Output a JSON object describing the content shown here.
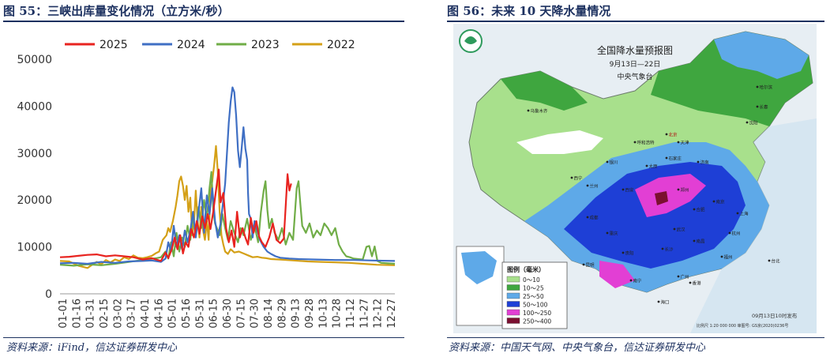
{
  "left_panel": {
    "figure_title": "图 55：三峡出库量变化情况（立方米/秒）",
    "source": "资料来源：iFind，信达证券研发中心"
  },
  "right_panel": {
    "figure_title": "图 56：未来 10 天降水量情况",
    "source": "资料来源：中国天气网、中央气象台，信达证券研发中心",
    "map": {
      "title": "全国降水量预报图",
      "date_range": "9月13日—22日",
      "issuer": "中央气象台",
      "legend_title": "图例（毫米）",
      "legend": [
        {
          "label": "0～10",
          "color": "#a8e08c"
        },
        {
          "label": "10～25",
          "color": "#3fa63f"
        },
        {
          "label": "25～50",
          "color": "#5ea9e8"
        },
        {
          "label": "50～100",
          "color": "#1e3fd6"
        },
        {
          "label": "100～250",
          "color": "#e23fd4"
        },
        {
          "label": "250～400",
          "color": "#7a1030"
        }
      ],
      "footer": "09月13日10时发布",
      "scale_note": "比例尺 1:20 000 000  审图号: GS京(2020)0236号",
      "cities": [
        "乌鲁木齐",
        "西宁",
        "兰州",
        "银川",
        "呼和浩特",
        "北京",
        "天津",
        "哈尔滨",
        "长春",
        "沈阳",
        "太原",
        "石家庄",
        "济南",
        "郑州",
        "西安",
        "成都",
        "重庆",
        "武汉",
        "合肥",
        "南京",
        "长沙",
        "南昌",
        "贵阳",
        "昆明",
        "福州",
        "广州",
        "南宁",
        "香港",
        "海口",
        "台北",
        "上海",
        "杭州"
      ]
    }
  },
  "chart_data": {
    "type": "line",
    "title": "",
    "xlabel": "",
    "ylabel": "",
    "ylim": [
      0,
      50000
    ],
    "yticks": [
      0,
      10000,
      20000,
      30000,
      40000,
      50000
    ],
    "x_ticks": [
      "01-01",
      "01-16",
      "01-31",
      "02-15",
      "03-02",
      "03-17",
      "04-01",
      "04-16",
      "05-01",
      "05-16",
      "05-31",
      "06-15",
      "06-30",
      "07-15",
      "07-30",
      "08-14",
      "08-29",
      "09-13",
      "09-28",
      "10-13",
      "10-28",
      "11-12",
      "11-27",
      "12-12",
      "12-27"
    ],
    "legend_position": "top",
    "series": [
      {
        "name": "2025",
        "color": "#e8231f",
        "points": [
          [
            0,
            7800
          ],
          [
            10,
            7900
          ],
          [
            20,
            8100
          ],
          [
            30,
            8300
          ],
          [
            40,
            8400
          ],
          [
            50,
            8000
          ],
          [
            60,
            8200
          ],
          [
            70,
            8000
          ],
          [
            80,
            7800
          ],
          [
            90,
            7300
          ],
          [
            100,
            7600
          ],
          [
            110,
            7000
          ],
          [
            115,
            8800
          ],
          [
            118,
            7600
          ],
          [
            122,
            9600
          ],
          [
            125,
            12000
          ],
          [
            128,
            9500
          ],
          [
            131,
            12500
          ],
          [
            134,
            8600
          ],
          [
            137,
            11000
          ],
          [
            140,
            10000
          ],
          [
            143,
            13800
          ],
          [
            146,
            12000
          ],
          [
            149,
            15500
          ],
          [
            152,
            12800
          ],
          [
            155,
            16500
          ],
          [
            158,
            14000
          ],
          [
            161,
            17000
          ],
          [
            164,
            13800
          ],
          [
            167,
            17500
          ],
          [
            170,
            22000
          ],
          [
            173,
            26500
          ],
          [
            175,
            19500
          ],
          [
            178,
            21500
          ],
          [
            181,
            14000
          ],
          [
            184,
            11000
          ],
          [
            187,
            13500
          ],
          [
            190,
            10000
          ],
          [
            193,
            17500
          ],
          [
            196,
            12000
          ],
          [
            199,
            14000
          ],
          [
            202,
            12000
          ],
          [
            205,
            10500
          ],
          [
            208,
            16200
          ],
          [
            211,
            13000
          ],
          [
            214,
            15500
          ],
          [
            217,
            12200
          ],
          [
            220,
            11000
          ],
          [
            224,
            10000
          ],
          [
            228,
            12000
          ],
          [
            232,
            15000
          ],
          [
            236,
            11500
          ],
          [
            240,
            10800
          ],
          [
            244,
            11800
          ],
          [
            248,
            25500
          ],
          [
            250,
            22000
          ],
          [
            252,
            23500
          ]
        ]
      },
      {
        "name": "2024",
        "color": "#3f6fc4",
        "points": [
          [
            0,
            6500
          ],
          [
            15,
            6600
          ],
          [
            30,
            6400
          ],
          [
            45,
            6800
          ],
          [
            60,
            6600
          ],
          [
            75,
            6900
          ],
          [
            90,
            7000
          ],
          [
            100,
            7100
          ],
          [
            110,
            6800
          ],
          [
            115,
            7500
          ],
          [
            118,
            11000
          ],
          [
            121,
            9000
          ],
          [
            124,
            14500
          ],
          [
            127,
            10000
          ],
          [
            130,
            12500
          ],
          [
            133,
            9500
          ],
          [
            136,
            13500
          ],
          [
            139,
            11000
          ],
          [
            142,
            13500
          ],
          [
            145,
            17500
          ],
          [
            148,
            12000
          ],
          [
            151,
            17500
          ],
          [
            154,
            22500
          ],
          [
            157,
            13000
          ],
          [
            160,
            21000
          ],
          [
            163,
            17000
          ],
          [
            166,
            22500
          ],
          [
            169,
            15500
          ],
          [
            172,
            12000
          ],
          [
            175,
            15000
          ],
          [
            178,
            20000
          ],
          [
            180,
            23500
          ],
          [
            182,
            30000
          ],
          [
            184,
            36500
          ],
          [
            186,
            41000
          ],
          [
            188,
            44000
          ],
          [
            190,
            43000
          ],
          [
            192,
            38000
          ],
          [
            194,
            30500
          ],
          [
            196,
            27000
          ],
          [
            198,
            31000
          ],
          [
            200,
            35500
          ],
          [
            202,
            31000
          ],
          [
            204,
            28500
          ],
          [
            205,
            21500
          ],
          [
            206,
            17000
          ],
          [
            208,
            16000
          ],
          [
            210,
            12000
          ],
          [
            212,
            15500
          ],
          [
            215,
            13500
          ],
          [
            218,
            11500
          ],
          [
            222,
            10000
          ],
          [
            226,
            9000
          ],
          [
            230,
            8500
          ],
          [
            235,
            8000
          ],
          [
            240,
            7700
          ],
          [
            250,
            7500
          ],
          [
            260,
            7400
          ],
          [
            280,
            7300
          ],
          [
            300,
            7200
          ],
          [
            320,
            7200
          ],
          [
            340,
            7100
          ],
          [
            365,
            7000
          ]
        ]
      },
      {
        "name": "2023",
        "color": "#70ad47",
        "points": [
          [
            0,
            6200
          ],
          [
            15,
            6000
          ],
          [
            30,
            6300
          ],
          [
            45,
            6100
          ],
          [
            60,
            6400
          ],
          [
            75,
            6800
          ],
          [
            90,
            7200
          ],
          [
            105,
            7600
          ],
          [
            110,
            7800
          ],
          [
            115,
            9000
          ],
          [
            118,
            7500
          ],
          [
            121,
            11000
          ],
          [
            124,
            8000
          ],
          [
            127,
            13000
          ],
          [
            130,
            9000
          ],
          [
            133,
            12000
          ],
          [
            136,
            10000
          ],
          [
            139,
            14500
          ],
          [
            142,
            11500
          ],
          [
            145,
            16500
          ],
          [
            148,
            13000
          ],
          [
            151,
            18500
          ],
          [
            154,
            14000
          ],
          [
            157,
            20000
          ],
          [
            160,
            16000
          ],
          [
            163,
            22500
          ],
          [
            165,
            26000
          ],
          [
            167,
            18000
          ],
          [
            169,
            15000
          ],
          [
            171,
            14000
          ],
          [
            174,
            12500
          ],
          [
            177,
            17000
          ],
          [
            180,
            14000
          ],
          [
            183,
            11500
          ],
          [
            186,
            15500
          ],
          [
            190,
            13000
          ],
          [
            194,
            11000
          ],
          [
            197,
            14000
          ],
          [
            200,
            12500
          ],
          [
            204,
            16000
          ],
          [
            208,
            11500
          ],
          [
            212,
            14500
          ],
          [
            216,
            11000
          ],
          [
            219,
            17500
          ],
          [
            222,
            22000
          ],
          [
            224,
            24000
          ],
          [
            226,
            18000
          ],
          [
            228,
            14000
          ],
          [
            231,
            16000
          ],
          [
            234,
            13000
          ],
          [
            238,
            11500
          ],
          [
            242,
            14000
          ],
          [
            246,
            10500
          ],
          [
            250,
            13000
          ],
          [
            254,
            11500
          ],
          [
            258,
            22500
          ],
          [
            260,
            24000
          ],
          [
            262,
            19000
          ],
          [
            264,
            14500
          ],
          [
            268,
            13000
          ],
          [
            272,
            15000
          ],
          [
            276,
            12000
          ],
          [
            280,
            13500
          ],
          [
            284,
            12500
          ],
          [
            288,
            15000
          ],
          [
            292,
            14000
          ],
          [
            296,
            12500
          ],
          [
            300,
            14000
          ],
          [
            304,
            10500
          ],
          [
            308,
            9000
          ],
          [
            312,
            8000
          ],
          [
            316,
            7800
          ],
          [
            320,
            7500
          ],
          [
            330,
            7300
          ],
          [
            334,
            10000
          ],
          [
            337,
            10200
          ],
          [
            340,
            8000
          ],
          [
            343,
            10100
          ],
          [
            346,
            7000
          ],
          [
            350,
            6600
          ],
          [
            365,
            6400
          ]
        ]
      },
      {
        "name": "2022",
        "color": "#d4a017",
        "points": [
          [
            0,
            7000
          ],
          [
            10,
            6900
          ],
          [
            20,
            6000
          ],
          [
            30,
            5500
          ],
          [
            35,
            6200
          ],
          [
            40,
            6800
          ],
          [
            45,
            6300
          ],
          [
            50,
            7200
          ],
          [
            55,
            6700
          ],
          [
            60,
            7300
          ],
          [
            65,
            7000
          ],
          [
            70,
            7800
          ],
          [
            75,
            7400
          ],
          [
            80,
            8200
          ],
          [
            85,
            7700
          ],
          [
            90,
            7600
          ],
          [
            95,
            7800
          ],
          [
            100,
            8100
          ],
          [
            104,
            8600
          ],
          [
            108,
            9000
          ],
          [
            112,
            11500
          ],
          [
            116,
            12500
          ],
          [
            118,
            14000
          ],
          [
            120,
            13200
          ],
          [
            123,
            15500
          ],
          [
            126,
            18500
          ],
          [
            128,
            21000
          ],
          [
            130,
            24000
          ],
          [
            132,
            25000
          ],
          [
            134,
            23000
          ],
          [
            136,
            20000
          ],
          [
            138,
            23000
          ],
          [
            140,
            17500
          ],
          [
            142,
            20500
          ],
          [
            144,
            12500
          ],
          [
            146,
            15000
          ],
          [
            148,
            22000
          ],
          [
            150,
            15500
          ],
          [
            152,
            12000
          ],
          [
            154,
            18500
          ],
          [
            156,
            13500
          ],
          [
            158,
            11500
          ],
          [
            160,
            15500
          ],
          [
            162,
            11500
          ],
          [
            164,
            21500
          ],
          [
            166,
            24000
          ],
          [
            168,
            27500
          ],
          [
            170,
            31500
          ],
          [
            172,
            26000
          ],
          [
            174,
            17500
          ],
          [
            176,
            12500
          ],
          [
            178,
            10500
          ],
          [
            180,
            9000
          ],
          [
            183,
            8500
          ],
          [
            186,
            9500
          ],
          [
            190,
            8800
          ],
          [
            195,
            9000
          ],
          [
            200,
            8600
          ],
          [
            205,
            8200
          ],
          [
            210,
            7800
          ],
          [
            215,
            7900
          ],
          [
            220,
            7700
          ],
          [
            225,
            7600
          ],
          [
            230,
            7400
          ],
          [
            240,
            7300
          ],
          [
            255,
            7100
          ],
          [
            270,
            6900
          ],
          [
            285,
            6800
          ],
          [
            300,
            6700
          ],
          [
            315,
            6600
          ],
          [
            330,
            6400
          ],
          [
            345,
            6200
          ],
          [
            365,
            6100
          ]
        ]
      }
    ]
  }
}
